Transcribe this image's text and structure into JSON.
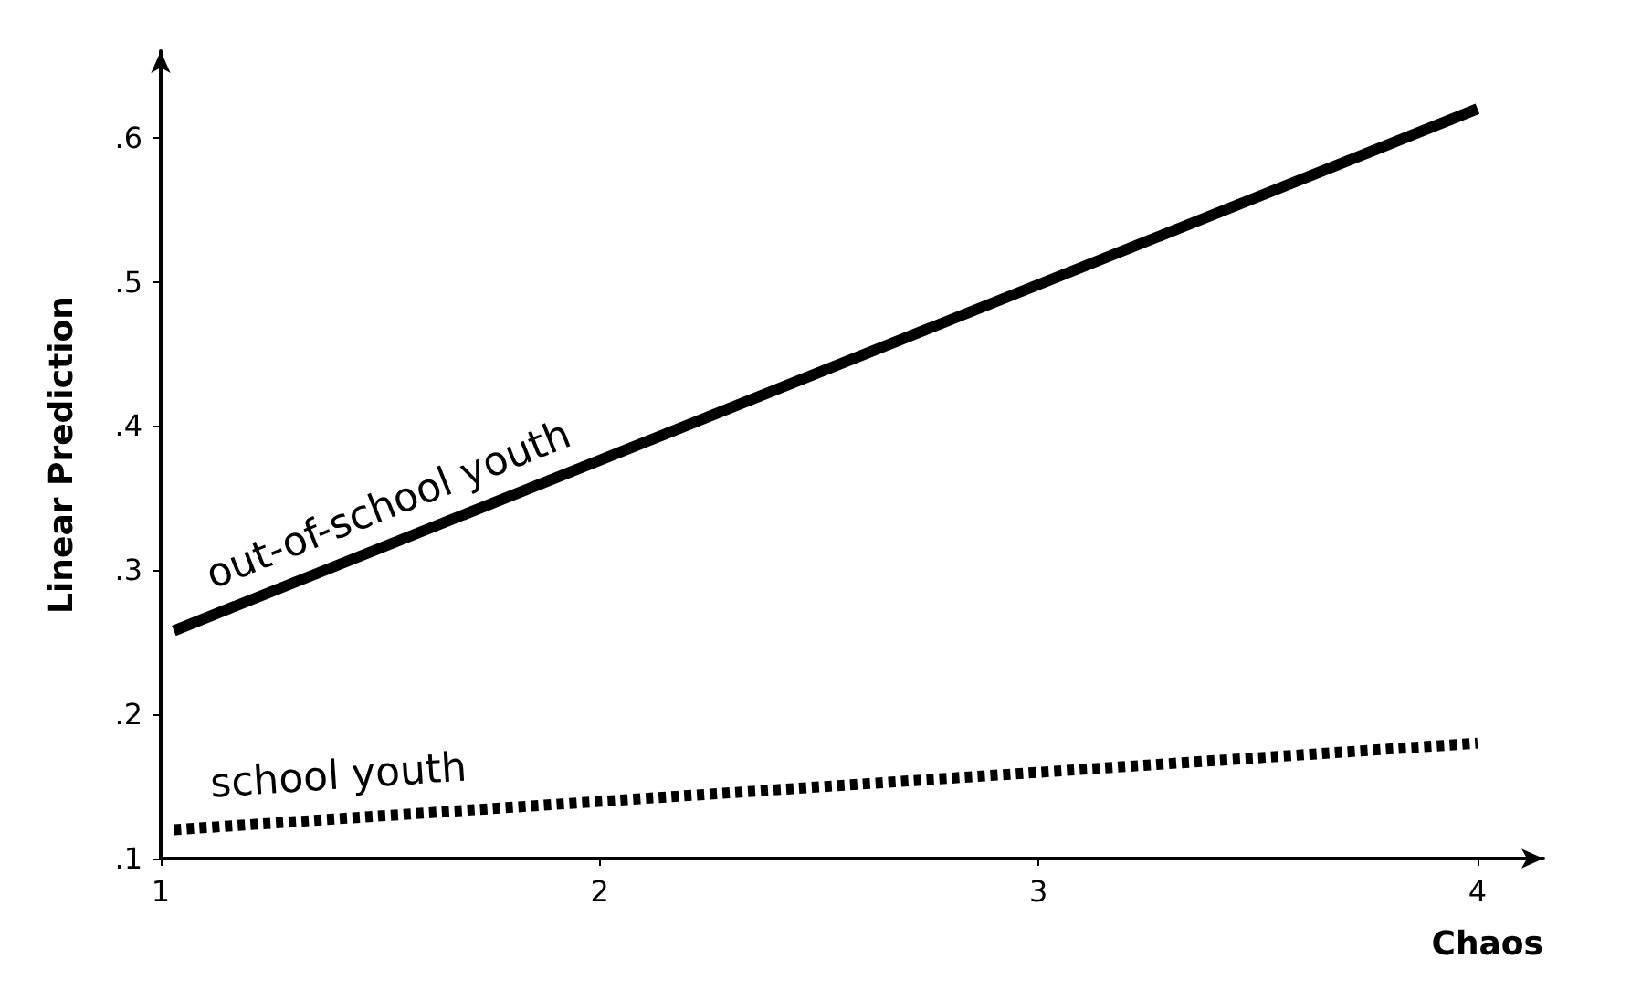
{
  "chart_data": {
    "type": "line",
    "xlabel": "Chaos",
    "ylabel": "Linear Prediction",
    "xlim": [
      1,
      4.15
    ],
    "ylim": [
      0.1,
      0.66
    ],
    "xticks": [
      1,
      2,
      3,
      4
    ],
    "yticks": [
      {
        "value": 0.1,
        "label": ".1"
      },
      {
        "value": 0.2,
        "label": ".2"
      },
      {
        "value": 0.3,
        "label": ".3"
      },
      {
        "value": 0.4,
        "label": ".4"
      },
      {
        "value": 0.5,
        "label": ".5"
      },
      {
        "value": 0.6,
        "label": ".6"
      }
    ],
    "grid": false,
    "legend": false,
    "marker": "none",
    "x": [
      1.03,
      4
    ],
    "series": [
      {
        "name": "out-of-school youth",
        "color": "#000000",
        "line_style": "solid",
        "values": [
          0.258,
          0.62
        ]
      },
      {
        "name": "school youth",
        "color": "#000000",
        "line_style": "dotted",
        "values": [
          0.12,
          0.18
        ]
      }
    ]
  }
}
